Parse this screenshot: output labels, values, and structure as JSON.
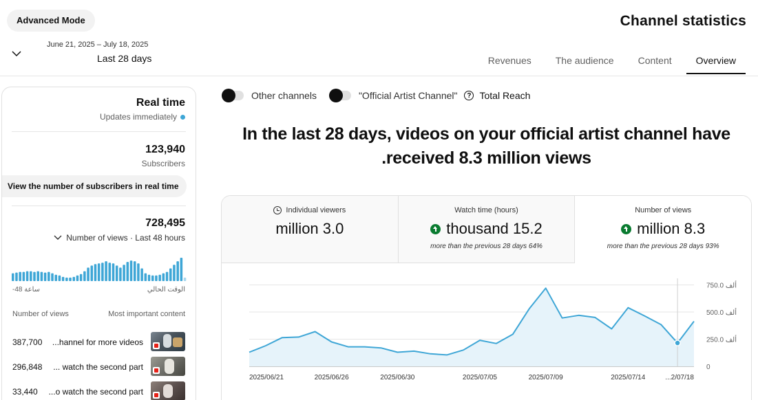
{
  "header": {
    "advanced_mode": "Advanced Mode",
    "title": "Channel statistics",
    "date_range": "June 21, 2025 – July 18, 2025",
    "date_label": "Last 28 days",
    "tabs": [
      {
        "label": "Revenues"
      },
      {
        "label": "The audience"
      },
      {
        "label": "Content"
      },
      {
        "label": "Overview",
        "active": true
      }
    ]
  },
  "realtime": {
    "title": "Real time",
    "subtitle": "Updates immediately",
    "subscribers_value": "123,940",
    "subscribers_label": "Subscribers",
    "subscribers_button": "View the number of subscribers in real time",
    "views_value": "728,495",
    "views_label": "Number of views · Last 48 hours",
    "spark_left": "-48 ساعة",
    "spark_right": "الوقت الحالي",
    "spark_values": [
      11,
      12,
      13,
      13,
      14,
      14,
      13,
      14,
      13,
      12,
      13,
      11,
      9,
      8,
      6,
      5,
      5,
      6,
      8,
      10,
      14,
      19,
      22,
      24,
      25,
      26,
      28,
      26,
      25,
      22,
      19,
      23,
      27,
      29,
      28,
      25,
      18,
      11,
      9,
      8,
      8,
      9,
      11,
      13,
      18,
      23,
      28,
      33,
      5
    ],
    "table_header_left": "Number of views",
    "table_header_right": "Most important content",
    "top_content": [
      {
        "views": "387,700",
        "title": "...hannel for more videos"
      },
      {
        "views": "296,848",
        "title": "... watch the second part"
      },
      {
        "views": "33,440",
        "title": "...o watch the second part"
      }
    ]
  },
  "toggles": {
    "other_channels": "Other channels",
    "official_artist": "\"Official Artist Channel\"",
    "total_reach": "Total Reach"
  },
  "headline": {
    "line1": "In the last 28 days, videos on your official artist channel have",
    "line2": ".received 8.3 million views"
  },
  "stats": [
    {
      "label": "Individual viewers",
      "value": "million 3.0",
      "comparison": ""
    },
    {
      "label": "Watch time (hours)",
      "value": "thousand 15.2",
      "comparison": "more than the previous 28 days 64%"
    },
    {
      "label": "Number of views",
      "value": "million 8.3",
      "comparison": "more than the previous 28 days 93%"
    }
  ],
  "colors": {
    "accent": "#3ea6d6",
    "positive": "#0a7b30"
  },
  "chart_data": {
    "type": "area",
    "x": [
      "2025/06/21",
      "2025/06/22",
      "2025/06/23",
      "2025/06/24",
      "2025/06/25",
      "2025/06/26",
      "2025/06/27",
      "2025/06/28",
      "2025/06/29",
      "2025/06/30",
      "2025/07/01",
      "2025/07/02",
      "2025/07/03",
      "2025/07/04",
      "2025/07/05",
      "2025/07/06",
      "2025/07/07",
      "2025/07/08",
      "2025/07/09",
      "2025/07/10",
      "2025/07/11",
      "2025/07/12",
      "2025/07/13",
      "2025/07/14",
      "2025/07/15",
      "2025/07/16",
      "2025/07/17",
      "2025/07/18"
    ],
    "values": [
      130,
      190,
      265,
      270,
      320,
      225,
      180,
      180,
      170,
      130,
      140,
      115,
      105,
      150,
      240,
      210,
      295,
      530,
      720,
      445,
      470,
      450,
      345,
      540,
      465,
      385,
      215,
      415
    ],
    "highlight_index": 26,
    "x_tick_labels": [
      "2025/06/21",
      "2025/06/26",
      "2025/06/30",
      "2025/07/05",
      "2025/07/09",
      "2025/07/14",
      "...2/07/18"
    ],
    "x_tick_index": [
      0,
      5,
      9,
      14,
      18,
      23,
      27
    ],
    "y_ticks": [
      0,
      250,
      500,
      750
    ],
    "y_tick_labels": [
      "0",
      "250.0 ألف",
      "500.0 ألف",
      "750.0 ألف"
    ],
    "ylim": [
      0,
      760
    ],
    "grid": true
  }
}
